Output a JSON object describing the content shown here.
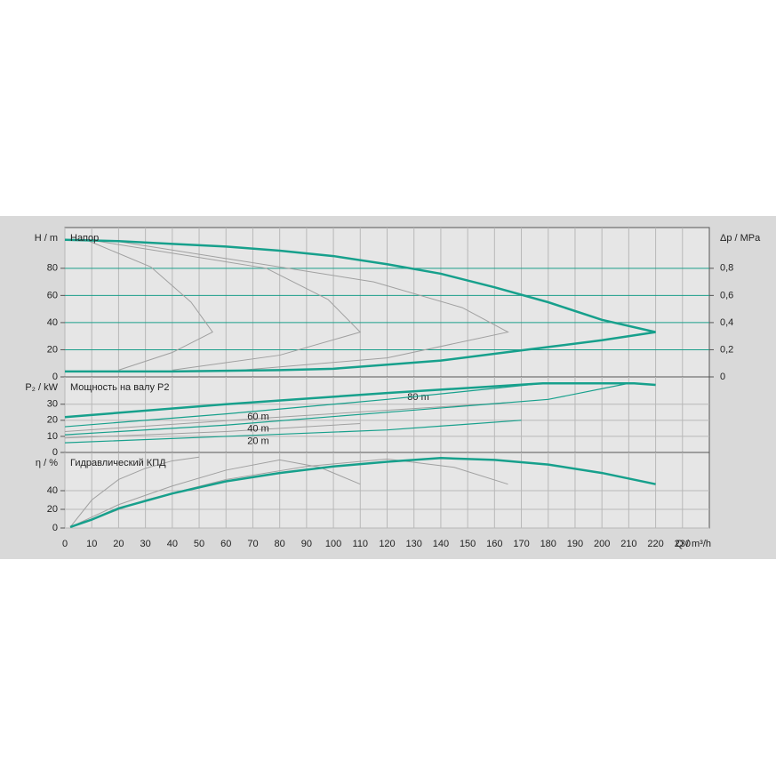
{
  "chart_data": [
    {
      "type": "line",
      "title": "Напор",
      "ylabel": "H / m",
      "y2label": "Δp / MPa",
      "xlim": [
        0,
        240
      ],
      "xticks": [
        0,
        10,
        20,
        30,
        40,
        50,
        60,
        70,
        80,
        90,
        100,
        110,
        120,
        130,
        140,
        150,
        160,
        170,
        180,
        190,
        200,
        210,
        220,
        230
      ],
      "ylim": [
        0,
        110
      ],
      "yticks": [
        0,
        20,
        40,
        60,
        80
      ],
      "grid_color": "#1a9e8a",
      "y2lim": [
        0,
        1.1
      ],
      "y2ticks": [
        0,
        {
          "value": 0.2,
          "label": "0,2"
        },
        {
          "value": 0.4,
          "label": "0,4"
        },
        {
          "value": 0.6,
          "label": "0,6"
        },
        {
          "value": 0.8,
          "label": "0,8"
        }
      ],
      "series": [
        {
          "color": "#a0a0a0",
          "linewidth": 1,
          "x": [
            9,
            32,
            47,
            55,
            40,
            20
          ],
          "values": [
            100,
            81,
            55,
            33,
            18,
            5
          ]
        },
        {
          "color": "#a0a0a0",
          "linewidth": 1,
          "x": [
            12,
            75,
            98,
            110,
            80,
            40
          ],
          "values": [
            100,
            80,
            57,
            33,
            16,
            5
          ]
        },
        {
          "color": "#a0a0a0",
          "linewidth": 1,
          "x": [
            19,
            115,
            148,
            165,
            120,
            60
          ],
          "values": [
            100,
            70,
            51,
            33,
            14,
            4
          ]
        },
        {
          "color": "#17a08c",
          "linewidth": 2.5,
          "x": [
            0,
            20,
            40,
            60,
            80,
            100,
            120,
            140,
            160,
            180,
            200,
            220
          ],
          "values": [
            101,
            100,
            98,
            96,
            93,
            89,
            83,
            76,
            66,
            55,
            42,
            33
          ]
        },
        {
          "color": "#17a08c",
          "linewidth": 2.5,
          "x": [
            0,
            40,
            80,
            100,
            120,
            140,
            160,
            180,
            200,
            220
          ],
          "values": [
            4,
            4,
            5,
            6,
            9,
            12,
            17,
            22,
            27,
            33
          ]
        }
      ]
    },
    {
      "type": "line",
      "title": "Мощность на валу P2",
      "ylabel": "P₂ / kW",
      "xlim": [
        0,
        240
      ],
      "xticks": [
        0,
        10,
        20,
        30,
        40,
        50,
        60,
        70,
        80,
        90,
        100,
        110,
        120,
        130,
        140,
        150,
        160,
        170,
        180,
        190,
        200,
        210,
        220,
        230
      ],
      "ylim": [
        0,
        47
      ],
      "yticks": [
        0,
        10,
        20,
        30
      ],
      "grid_color": "#b8b8b8",
      "series": [
        {
          "color": "#a0a0a0",
          "linewidth": 1,
          "x": [
            0,
            60,
            110
          ],
          "values": [
            9,
            13,
            18
          ]
        },
        {
          "color": "#a0a0a0",
          "linewidth": 1,
          "x": [
            0,
            80,
            165
          ],
          "values": [
            13,
            22,
            31
          ]
        },
        {
          "color": "#17a08c",
          "linewidth": 2.5,
          "label": "80 m",
          "x": [
            0,
            60,
            120,
            178,
            212,
            220
          ],
          "values": [
            22,
            30,
            37,
            43,
            43,
            42
          ]
        },
        {
          "color": "#17a08c",
          "linewidth": 1.2,
          "label": "60 m",
          "x": [
            0,
            60,
            120,
            178
          ],
          "values": [
            16,
            24,
            33,
            43
          ]
        },
        {
          "color": "#17a08c",
          "linewidth": 1.2,
          "label": "40 m",
          "x": [
            0,
            60,
            120,
            180,
            210
          ],
          "values": [
            11,
            17,
            25,
            33,
            43
          ]
        },
        {
          "color": "#17a08c",
          "linewidth": 1.2,
          "label": "20 m",
          "x": [
            0,
            60,
            120,
            170
          ],
          "values": [
            6,
            10,
            14,
            20
          ]
        }
      ]
    },
    {
      "type": "line",
      "title": "Гидравлический КПД",
      "ylabel": "η / %",
      "xlabel": "Q / m³/h",
      "xlim": [
        0,
        240
      ],
      "xticks": [
        0,
        10,
        20,
        30,
        40,
        50,
        60,
        70,
        80,
        90,
        100,
        110,
        120,
        130,
        140,
        150,
        160,
        170,
        180,
        190,
        200,
        210,
        220,
        230
      ],
      "ylim": [
        0,
        81
      ],
      "yticks": [
        0,
        20,
        40
      ],
      "grid_color": "#b8b8b8",
      "series": [
        {
          "color": "#a0a0a0",
          "linewidth": 1,
          "x": [
            2,
            10,
            20,
            30,
            40,
            50
          ],
          "values": [
            1,
            30,
            52,
            64,
            72,
            76
          ]
        },
        {
          "color": "#a0a0a0",
          "linewidth": 1,
          "x": [
            2,
            20,
            40,
            60,
            80,
            95,
            110
          ],
          "values": [
            1,
            25,
            45,
            62,
            73,
            65,
            47
          ]
        },
        {
          "color": "#a0a0a0",
          "linewidth": 1,
          "x": [
            2,
            30,
            60,
            90,
            120,
            145,
            165
          ],
          "values": [
            1,
            30,
            52,
            66,
            74,
            65,
            47
          ]
        },
        {
          "color": "#17a08c",
          "linewidth": 2.5,
          "x": [
            2,
            10,
            20,
            40,
            60,
            80,
            100,
            120,
            140,
            160,
            180,
            200,
            220
          ],
          "values": [
            1,
            9,
            21,
            37,
            50,
            59,
            66,
            71,
            75,
            73,
            68,
            59,
            47
          ]
        }
      ]
    }
  ]
}
